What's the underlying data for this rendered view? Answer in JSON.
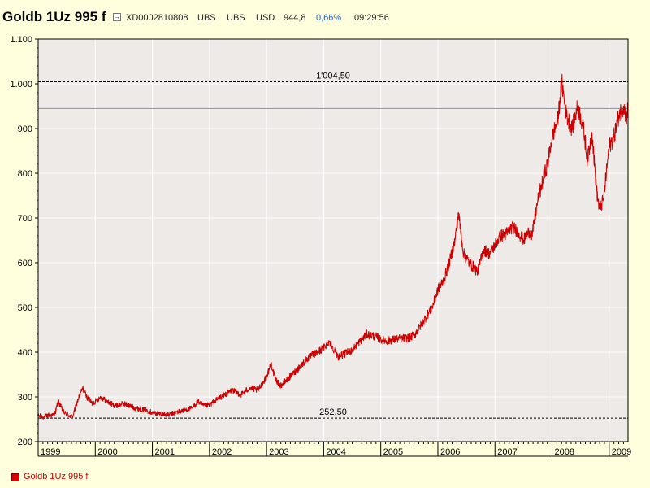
{
  "header": {
    "title": "Goldb 1Uz 995 f",
    "isin": "XD0002810808",
    "exchange": "UBS",
    "source": "UBS",
    "currency": "USD",
    "last_price": "944,8",
    "change_pct": "0,66%",
    "time": "09:29:56",
    "icon": "external-link-icon"
  },
  "legend": {
    "label": "Goldb 1Uz 995 f",
    "color": "#dd0000"
  },
  "colors": {
    "background": "#ffffdd",
    "plot_background": "#eeeae7",
    "grid": "#ffffff",
    "series": "#cc0000",
    "current_line": "#6699dd",
    "change_positive": "#2266cc"
  },
  "chart_data": {
    "type": "line",
    "title": "Goldb 1Uz 995 f",
    "xlabel": "",
    "ylabel": "",
    "xlim": [
      1999.0,
      2009.33
    ],
    "ylim": [
      200,
      1100
    ],
    "y_ticks": [
      200,
      300,
      400,
      500,
      600,
      700,
      800,
      900,
      1000,
      1100
    ],
    "y_tick_labels": [
      "200",
      "300",
      "400",
      "500",
      "600",
      "700",
      "800",
      "900",
      "1.000",
      "1.100"
    ],
    "x_ticks": [
      1999,
      2000,
      2001,
      2002,
      2003,
      2004,
      2005,
      2006,
      2007,
      2008,
      2009
    ],
    "x_tick_labels": [
      "1999",
      "2000",
      "2001",
      "2002",
      "2003",
      "2004",
      "2005",
      "2006",
      "2007",
      "2008",
      "2009"
    ],
    "grid": true,
    "reference_lines": [
      {
        "name": "max",
        "value": 1004.5,
        "label": "1'004,50",
        "style": "dashed"
      },
      {
        "name": "min",
        "value": 252.5,
        "label": "252,50",
        "style": "dashed"
      },
      {
        "name": "current",
        "value": 944.8,
        "style": "solid"
      }
    ],
    "series": [
      {
        "name": "Goldb 1Uz 995 f",
        "x": [
          1999.0,
          1999.1,
          1999.2,
          1999.25,
          1999.3,
          1999.35,
          1999.45,
          1999.55,
          1999.6,
          1999.7,
          1999.78,
          1999.85,
          1999.95,
          2000.1,
          2000.2,
          2000.35,
          2000.5,
          2000.7,
          2000.9,
          2001.0,
          2001.15,
          2001.3,
          2001.4,
          2001.55,
          2001.7,
          2001.8,
          2001.9,
          2002.0,
          2002.2,
          2002.4,
          2002.55,
          2002.7,
          2002.85,
          2003.0,
          2003.08,
          2003.15,
          2003.25,
          2003.45,
          2003.6,
          2003.75,
          2003.9,
          2004.0,
          2004.1,
          2004.25,
          2004.35,
          2004.5,
          2004.75,
          2004.92,
          2005.0,
          2005.1,
          2005.3,
          2005.5,
          2005.6,
          2005.75,
          2005.9,
          2006.0,
          2006.1,
          2006.2,
          2006.3,
          2006.36,
          2006.45,
          2006.55,
          2006.7,
          2006.8,
          2006.9,
          2007.0,
          2007.1,
          2007.2,
          2007.3,
          2007.4,
          2007.5,
          2007.6,
          2007.65,
          2007.75,
          2007.85,
          2007.92,
          2008.0,
          2008.1,
          2008.17,
          2008.25,
          2008.35,
          2008.45,
          2008.55,
          2008.62,
          2008.7,
          2008.78,
          2008.83,
          2008.9,
          2009.0,
          2009.08,
          2009.17,
          2009.25,
          2009.3,
          2009.33
        ],
        "values": [
          258,
          255,
          260,
          258,
          265,
          290,
          265,
          258,
          255,
          295,
          320,
          300,
          285,
          300,
          290,
          280,
          285,
          275,
          270,
          265,
          262,
          260,
          265,
          270,
          275,
          290,
          280,
          282,
          300,
          315,
          305,
          320,
          315,
          345,
          375,
          340,
          325,
          350,
          370,
          390,
          400,
          410,
          425,
          390,
          395,
          405,
          440,
          435,
          428,
          425,
          430,
          432,
          440,
          470,
          500,
          540,
          560,
          600,
          650,
          712,
          620,
          600,
          580,
          630,
          620,
          640,
          660,
          665,
          680,
          670,
          650,
          670,
          660,
          740,
          790,
          820,
          880,
          920,
          1004.5,
          930,
          900,
          950,
          900,
          830,
          890,
          760,
          720,
          740,
          860,
          880,
          930,
          950,
          925,
          944.8
        ]
      }
    ]
  }
}
